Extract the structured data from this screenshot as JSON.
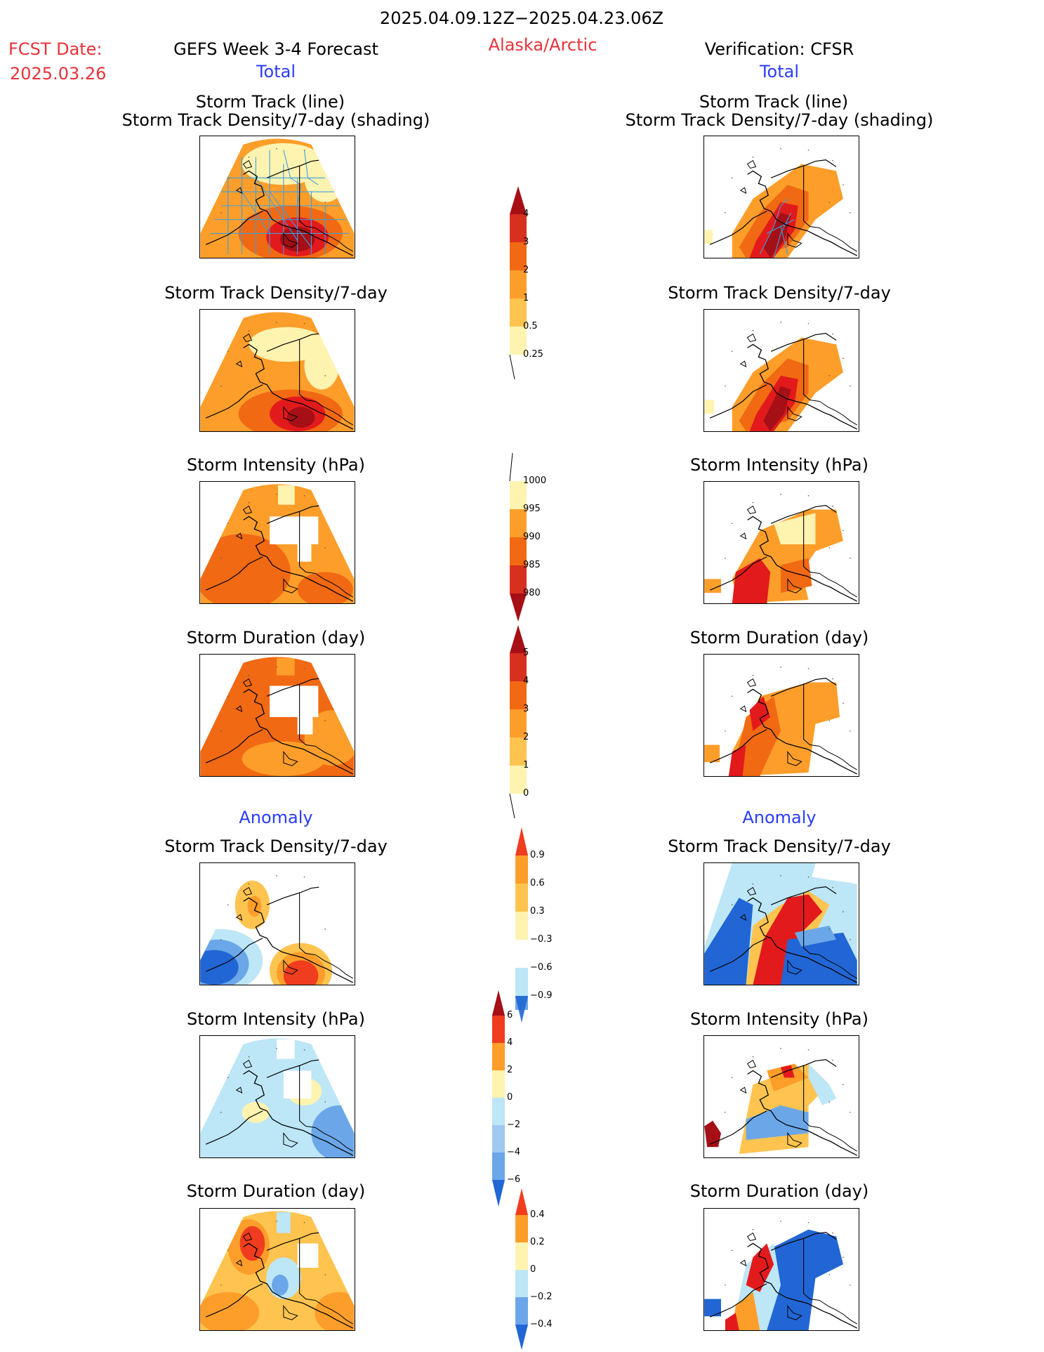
{
  "header": {
    "title": "2025.04.09.12Z−2025.04.23.06Z",
    "fcst_label": "FCST Date:",
    "fcst_date": "2025.03.26",
    "forecast_title": "GEFS Week 3-4 Forecast",
    "region": "Alaska/Arctic",
    "verification": "Verification: CFSR"
  },
  "sections": {
    "total": "Total",
    "anomaly": "Anomaly"
  },
  "panel_titles": {
    "track_line": "Storm Track (line)",
    "track_density_shading": "Storm Track Density/7-day (shading)",
    "track_density": "Storm Track Density/7-day",
    "intensity": "Storm Intensity (hPa)",
    "duration": "Storm Duration (day)"
  },
  "colorbars": {
    "density_total": {
      "labels": [
        "4",
        "3",
        "2",
        "1",
        "0.5",
        "0.25"
      ],
      "colors": [
        "#a50f15",
        "#d7301f",
        "#f16913",
        "#fd8d3c",
        "#fec44f",
        "#fff7bc"
      ]
    },
    "intensity_total": {
      "labels": [
        "1000",
        "995",
        "990",
        "985",
        "980"
      ],
      "colors": [
        "#fff7bc",
        "#fec44f",
        "#fd8d3c",
        "#f16913",
        "#d7301f",
        "#a50f15"
      ]
    },
    "duration_total": {
      "labels": [
        "5",
        "4",
        "3",
        "2",
        "1",
        "0"
      ],
      "colors": [
        "#a50f15",
        "#d7301f",
        "#f16913",
        "#fd8d3c",
        "#fec44f",
        "#fff7bc"
      ]
    },
    "density_anom": {
      "labels": [
        "0.9",
        "0.6",
        "0.3",
        "−0.3",
        "−0.6",
        "−0.9"
      ]
    },
    "intensity_anom": {
      "labels": [
        "6",
        "4",
        "2",
        "0",
        "−2",
        "−4",
        "−6"
      ]
    },
    "duration_anom": {
      "labels": [
        "0.4",
        "0.2",
        "0",
        "−0.2",
        "−0.4"
      ]
    }
  },
  "palette": {
    "dark_red": "#a50f15",
    "red": "#e31a1c",
    "orange_red": "#f16913",
    "orange": "#fd9e2a",
    "light_orange": "#fec44f",
    "pale_yellow": "#fff3b0",
    "light_blue": "#bde6f7",
    "mid_blue": "#6ba7e8",
    "blue": "#2166d4",
    "track_blue": "#3aa0e0"
  }
}
